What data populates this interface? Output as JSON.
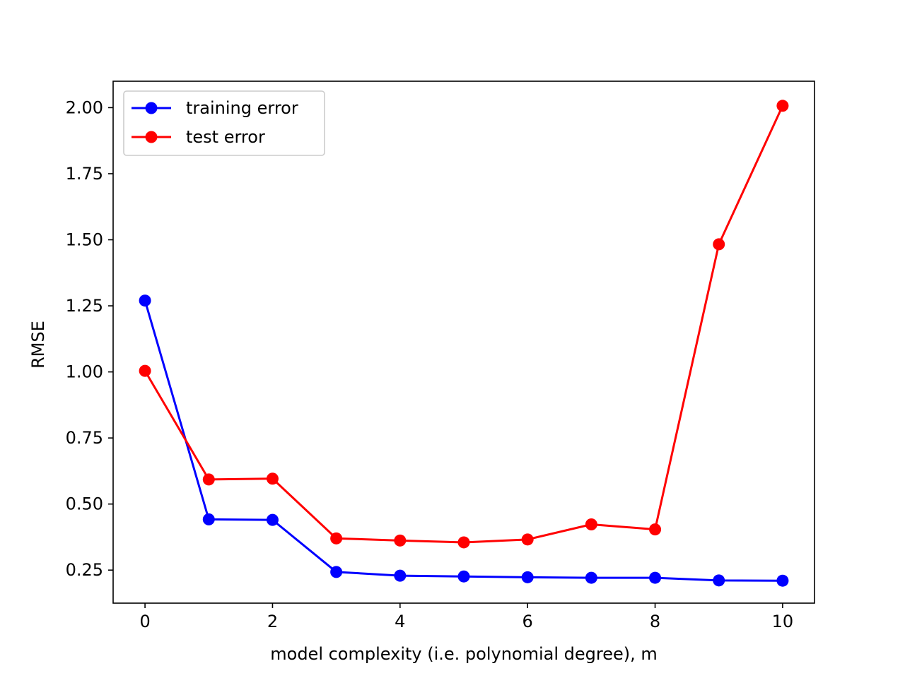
{
  "chart_data": {
    "type": "line",
    "title": "",
    "xlabel": "model complexity (i.e. polynomial degree), m",
    "ylabel": "RMSE",
    "x": [
      0,
      1,
      2,
      3,
      4,
      5,
      6,
      7,
      8,
      9,
      10
    ],
    "xlim": [
      -0.5,
      10.5
    ],
    "ylim": [
      0.125,
      2.1
    ],
    "xticks": [
      0,
      2,
      4,
      6,
      8,
      10
    ],
    "xtick_labels": [
      "0",
      "2",
      "4",
      "6",
      "8",
      "10"
    ],
    "yticks": [
      0.25,
      0.5,
      0.75,
      1.0,
      1.25,
      1.5,
      1.75,
      2.0
    ],
    "ytick_labels": [
      "0.25",
      "0.50",
      "0.75",
      "1.00",
      "1.25",
      "1.50",
      "1.75",
      "2.00"
    ],
    "grid": false,
    "legend_position": "top-left",
    "series": [
      {
        "name": "training error",
        "color": "#0000ff",
        "marker": "circle",
        "values": [
          1.27,
          0.442,
          0.44,
          0.243,
          0.229,
          0.226,
          0.223,
          0.221,
          0.221,
          0.211,
          0.21
        ]
      },
      {
        "name": "test error",
        "color": "#ff0000",
        "marker": "circle",
        "values": [
          1.004,
          0.593,
          0.596,
          0.37,
          0.362,
          0.355,
          0.366,
          0.423,
          0.404,
          1.483,
          2.007
        ]
      }
    ]
  }
}
